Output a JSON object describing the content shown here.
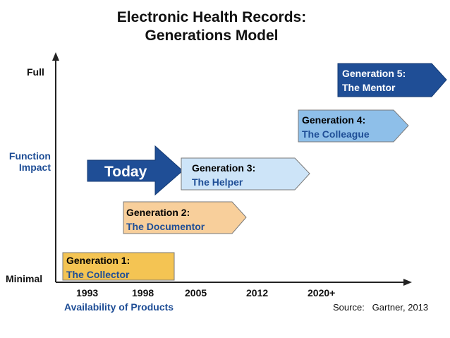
{
  "title": {
    "line1": "Electronic Health Records:",
    "line2": "Generations Model"
  },
  "y_axis": {
    "top_label": "Full",
    "title_line1": "Function",
    "title_line2": "Impact",
    "bottom_label": "Minimal"
  },
  "x_axis": {
    "ticks": [
      "1993",
      "1998",
      "2005",
      "2012",
      "2020+"
    ],
    "title": "Availability of Products"
  },
  "today": {
    "label": "Today",
    "color": "#1f4e96"
  },
  "generations": [
    {
      "heading": "Generation 1:",
      "name": "The Collector",
      "color": "#f4c453"
    },
    {
      "heading": "Generation 2:",
      "name": "The Documentor",
      "color": "#f8cf9b"
    },
    {
      "heading": "Generation 3:",
      "name": "The Helper",
      "color": "#cde4f8"
    },
    {
      "heading": "Generation 4:",
      "name": "The Colleague",
      "color": "#8ebfe9"
    },
    {
      "heading": "Generation 5:",
      "name": "The Mentor",
      "color": "#1f4e96"
    }
  ],
  "source": "Source:   Gartner, 2013"
}
